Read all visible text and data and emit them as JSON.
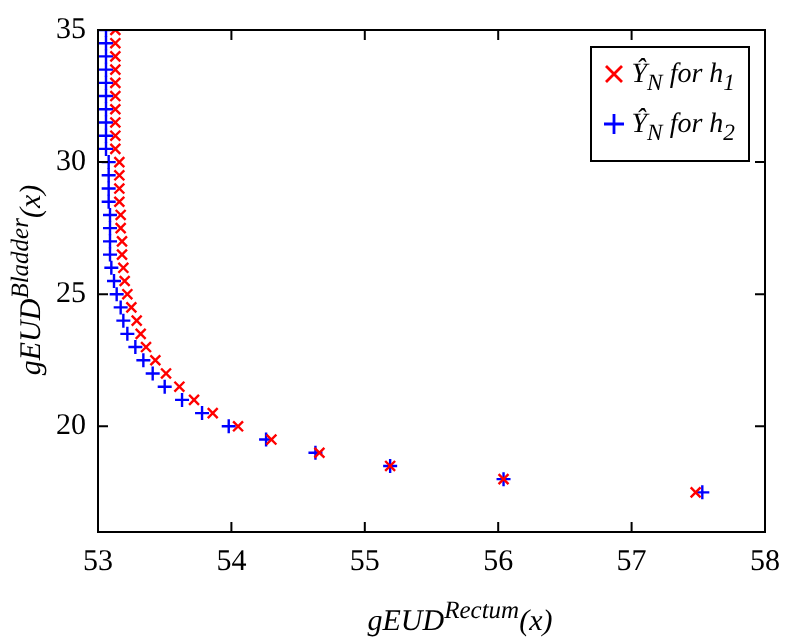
{
  "chart_data": {
    "type": "scatter",
    "xlabel": "gEUD$^{Rectum}$(x)",
    "ylabel": "gEUD$^{Bladder}$(x)",
    "xlim": [
      53,
      58
    ],
    "xticks": [
      53,
      54,
      55,
      56,
      57,
      58
    ],
    "ylim": [
      16,
      35
    ],
    "yticks": [
      20,
      25,
      30,
      35
    ],
    "grid": false,
    "legend": "top right",
    "series": [
      {
        "name": "Ŷ$_{N}$ for h$_{1}$",
        "color": "#ff0000",
        "marker": "x",
        "x": [
          57.48,
          56.04,
          55.19,
          54.66,
          54.3,
          54.05,
          53.86,
          53.72,
          53.61,
          53.51,
          53.43,
          53.36,
          53.32,
          53.29,
          53.25,
          53.22,
          53.2,
          53.19,
          53.18,
          53.18,
          53.17,
          53.17,
          53.16,
          53.16,
          53.16,
          53.16,
          53.13,
          53.13,
          53.13,
          53.13,
          53.13,
          53.13,
          53.13,
          53.13,
          53.13,
          53.13
        ],
        "values": [
          17.5,
          18,
          18.5,
          19,
          19.5,
          20,
          20.5,
          21,
          21.5,
          22,
          22.5,
          23,
          23.5,
          24,
          24.5,
          25,
          25.5,
          26,
          26.5,
          27,
          27.5,
          28,
          28.5,
          29,
          29.5,
          30,
          30.5,
          31,
          31.5,
          32,
          32.5,
          33,
          33.5,
          34,
          34.5,
          35
        ]
      },
      {
        "name": "Ŷ$_{N}$ for h$_{2}$",
        "color": "#0000ff",
        "marker": "cross",
        "x": [
          57.53,
          56.04,
          55.19,
          54.63,
          54.26,
          53.98,
          53.78,
          53.63,
          53.5,
          53.41,
          53.34,
          53.28,
          53.22,
          53.19,
          53.17,
          53.14,
          53.12,
          53.1,
          53.09,
          53.09,
          53.09,
          53.09,
          53.08,
          53.08,
          53.08,
          53.08,
          53.06,
          53.06,
          53.06,
          53.06,
          53.06,
          53.06,
          53.06,
          53.06,
          53.06,
          53.06
        ],
        "values": [
          17.5,
          18,
          18.5,
          19,
          19.5,
          20,
          20.5,
          21,
          21.5,
          22,
          22.5,
          23,
          23.5,
          24,
          24.5,
          25,
          25.5,
          26,
          26.5,
          27,
          27.5,
          28,
          28.5,
          29,
          29.5,
          30,
          30.5,
          31,
          31.5,
          32,
          32.5,
          33,
          33.5,
          34,
          34.5,
          35
        ]
      }
    ]
  }
}
